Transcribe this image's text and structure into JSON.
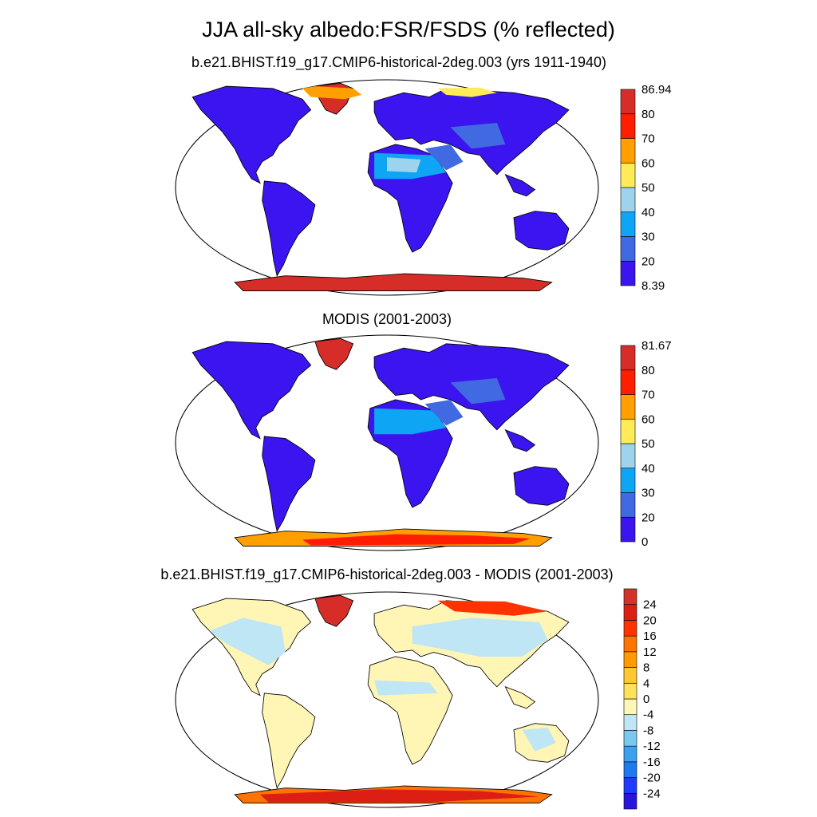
{
  "title": "JJA all-sky albedo:FSR/FSDS (% reflected)",
  "panels": [
    {
      "id": "model",
      "subtitle": "b.e21.BHIST.f19_g17.CMIP6-historical-2deg.003 (yrs 1911-1940)",
      "colorbar": {
        "colors": [
          "#3c14f0",
          "#4169e1",
          "#0fa5f5",
          "#9ed3ee",
          "#ffeb5a",
          "#ffa000",
          "#ff1e00",
          "#d72d28"
        ],
        "labels": [
          "8.39",
          "20",
          "30",
          "40",
          "50",
          "60",
          "70",
          "80",
          "86.94"
        ]
      }
    },
    {
      "id": "modis",
      "subtitle": "MODIS (2001-2003)",
      "colorbar": {
        "colors": [
          "#3c14f0",
          "#4169e1",
          "#0fa5f5",
          "#9ed3ee",
          "#ffeb5a",
          "#ffa000",
          "#ff1e00",
          "#d72d28"
        ],
        "labels": [
          "0",
          "20",
          "30",
          "40",
          "50",
          "60",
          "70",
          "80",
          "81.67"
        ]
      }
    },
    {
      "id": "difference",
      "subtitle": "b.e21.BHIST.f19_g17.CMIP6-historical-2deg.003 - MODIS (2001-2003)",
      "colorbar": {
        "colors": [
          "#2814dc",
          "#1e3cff",
          "#1e78f0",
          "#3ca0f0",
          "#78c8f0",
          "#bee6f5",
          "#fff5b4",
          "#ffe15a",
          "#ffc832",
          "#ff9b00",
          "#ff7300",
          "#ff3200",
          "#dc1e14",
          "#d23228"
        ],
        "labels": [
          "-24",
          "-20",
          "-16",
          "-12",
          "-8",
          "-4",
          "0",
          "4",
          "8",
          "12",
          "16",
          "20",
          "24"
        ]
      }
    }
  ]
}
